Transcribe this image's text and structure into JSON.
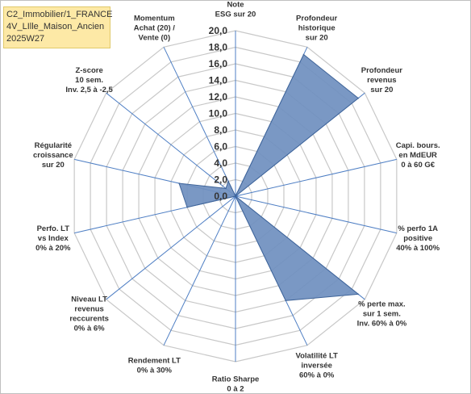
{
  "title": {
    "line1": "C2_Immobilier/1_FRANCE",
    "line2": "4V_LIlle_Maison_Ancien",
    "line3": "2025W27"
  },
  "chart_data": {
    "type": "radar",
    "rlim": [
      0,
      20
    ],
    "tick_labels": [
      "0,0",
      "2,0",
      "4,0",
      "6,0",
      "8,0",
      "10,0",
      "12,0",
      "14,0",
      "16,0",
      "18,0",
      "20,0"
    ],
    "grid": true,
    "series_color": "#6f8fbf",
    "categories": [
      {
        "label": [
          "Note",
          "ESG sur 20"
        ],
        "value": 0
      },
      {
        "label": [
          "Profondeur",
          "historique",
          "sur 20"
        ],
        "value": 19
      },
      {
        "label": [
          "Profondeur",
          "revenus",
          "sur 20"
        ],
        "value": 19
      },
      {
        "label": [
          "Capi. bours.",
          "en MdEUR",
          "0 à 60 G€"
        ],
        "value": 0
      },
      {
        "label": [
          "% perfo 1A",
          "positive",
          "40% à 100%"
        ],
        "value": 0
      },
      {
        "label": [
          "% perte max.",
          "sur 1 sem.",
          "Inv. 60% à 0%"
        ],
        "value": 19
      },
      {
        "label": [
          "Volatilité LT",
          "inversée",
          "60% à 0%"
        ],
        "value": 14
      },
      {
        "label": [
          "Ratio Sharpe",
          "0 à 2"
        ],
        "value": 0
      },
      {
        "label": [
          "Rendement LT",
          "0% à 30%"
        ],
        "value": 0
      },
      {
        "label": [
          "Niveau LT",
          "revenus",
          "reccurents",
          "0% à 6%"
        ],
        "value": 0
      },
      {
        "label": [
          "Perfo. LT",
          "vs Index",
          "0% à 20%"
        ],
        "value": 6
      },
      {
        "label": [
          "Régularité",
          "croissance",
          "sur 20"
        ],
        "value": 7
      },
      {
        "label": [
          "Z-score",
          "10 sem.",
          "Inv. 2,5 à -2,5"
        ],
        "value": 1.5
      },
      {
        "label": [
          "Momentum",
          "Achat (20) /",
          "Vente (0)"
        ],
        "value": 2
      }
    ]
  }
}
